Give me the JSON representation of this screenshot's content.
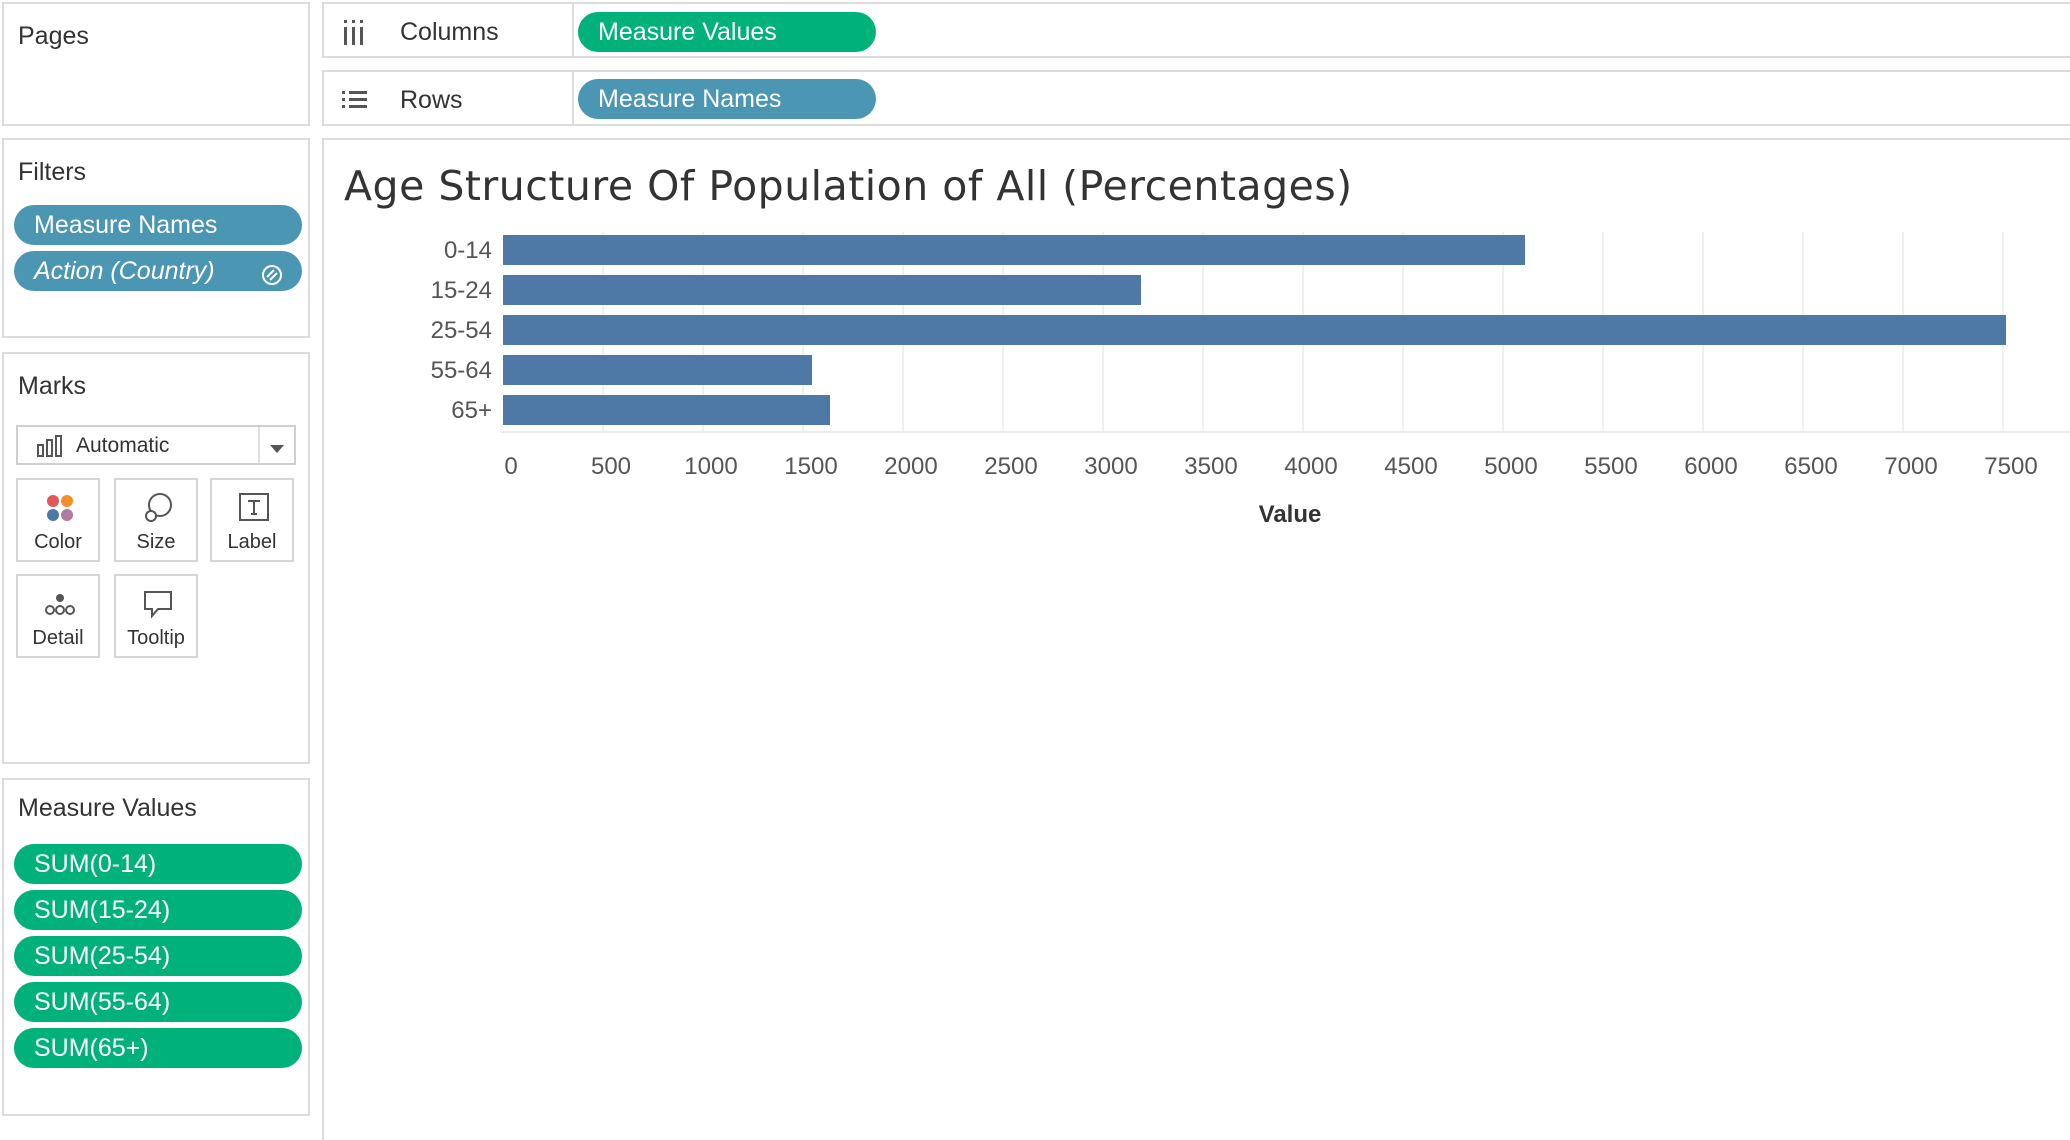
{
  "pages_shelf": {
    "title": "Pages"
  },
  "filters_shelf": {
    "title": "Filters",
    "items": [
      {
        "label": "Measure Names"
      },
      {
        "label": "Action (Country)"
      }
    ]
  },
  "marks_card": {
    "title": "Marks",
    "mark_type": "Automatic",
    "buttons": [
      {
        "label": "Color"
      },
      {
        "label": "Size"
      },
      {
        "label": "Label"
      },
      {
        "label": "Detail"
      },
      {
        "label": "Tooltip"
      }
    ]
  },
  "measure_values_card": {
    "title": "Measure Values",
    "items": [
      {
        "label": "SUM(0-14)"
      },
      {
        "label": "SUM(15-24)"
      },
      {
        "label": "SUM(25-54)"
      },
      {
        "label": "SUM(55-64)"
      },
      {
        "label": "SUM(65+)"
      }
    ]
  },
  "columns_shelf": {
    "label": "Columns",
    "pill": "Measure Values"
  },
  "rows_shelf": {
    "label": "Rows",
    "pill": "Measure Names"
  },
  "colors": {
    "dimension_pill": "#4a96b3",
    "measure_pill": "#00b17a",
    "bar": "#4e79a7",
    "grid": "#ebebeb"
  },
  "chart_data": {
    "type": "bar",
    "orientation": "horizontal",
    "title": "Age Structure Of Population of All (Percentages)",
    "xlabel": "Value",
    "ylabel": "",
    "categories": [
      "0-14",
      "15-24",
      "25-54",
      "55-64",
      "65+"
    ],
    "values": [
      5110,
      3190,
      7515,
      1545,
      1635
    ],
    "xlim": [
      0,
      7500
    ],
    "x_ticks": [
      0,
      500,
      1000,
      1500,
      2000,
      2500,
      3000,
      3500,
      4000,
      4500,
      5000,
      5500,
      6000,
      6500,
      7000,
      7500
    ],
    "grid": "vertical"
  }
}
